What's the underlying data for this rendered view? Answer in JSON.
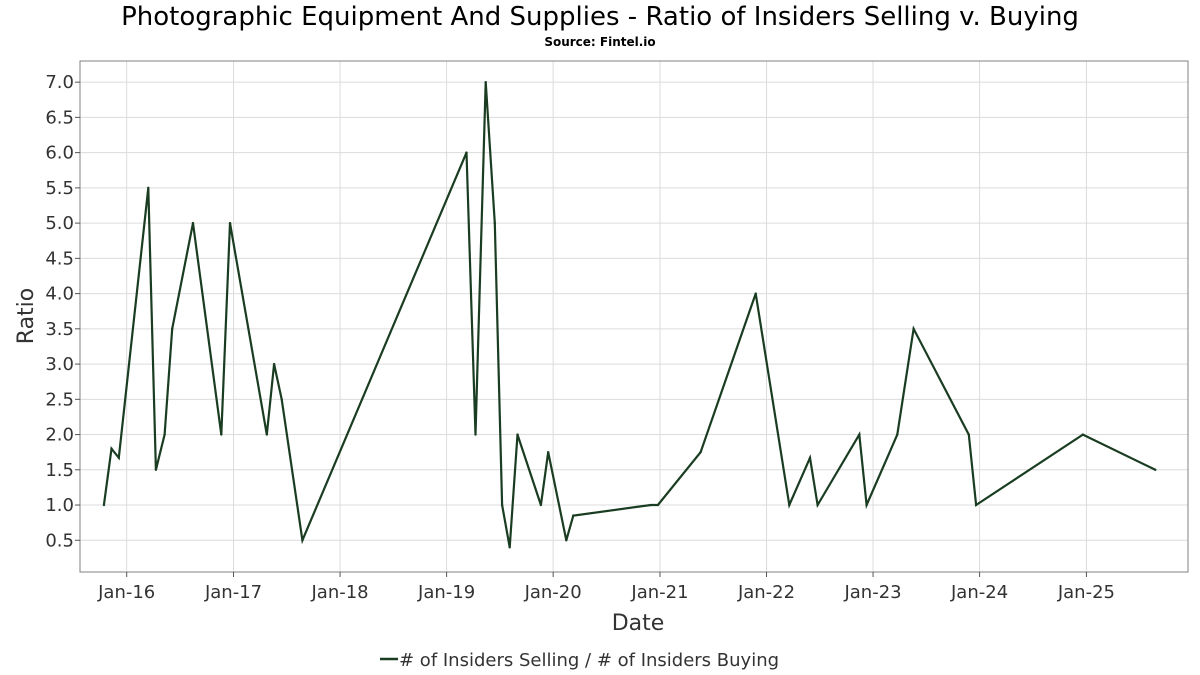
{
  "chart_data": {
    "type": "line",
    "title": "Photographic Equipment And Supplies - Ratio of Insiders Selling v. Buying",
    "subtitle": "Source: Fintel.io",
    "xlabel": "Date",
    "ylabel": "Ratio",
    "x_ticks": [
      "Jan-16",
      "Jan-17",
      "Jan-18",
      "Jan-19",
      "Jan-20",
      "Jan-21",
      "Jan-22",
      "Jan-23",
      "Jan-24",
      "Jan-25"
    ],
    "y_ticks": [
      "0.5",
      "1.0",
      "1.5",
      "2.0",
      "2.5",
      "3.0",
      "3.5",
      "4.0",
      "4.5",
      "5.0",
      "5.5",
      "6.0",
      "6.5",
      "7.0"
    ],
    "xlim": [
      "2015-07-25",
      "2025-12-15"
    ],
    "ylim": [
      0.05,
      7.3
    ],
    "grid": true,
    "legend_position": "bottom-center",
    "line_color": "#1a3d22",
    "series": [
      {
        "name": "# of Insiders Selling / # of Insiders Buying",
        "points": [
          [
            "2015-10-15",
            1.0
          ],
          [
            "2015-11-10",
            1.8
          ],
          [
            "2015-12-05",
            1.67
          ],
          [
            "2016-03-15",
            5.5
          ],
          [
            "2016-04-10",
            1.5
          ],
          [
            "2016-05-10",
            2.0
          ],
          [
            "2016-06-05",
            3.5
          ],
          [
            "2016-08-15",
            5.0
          ],
          [
            "2016-11-20",
            2.0
          ],
          [
            "2016-12-20",
            5.0
          ],
          [
            "2017-04-25",
            2.0
          ],
          [
            "2017-05-20",
            3.0
          ],
          [
            "2017-06-15",
            2.5
          ],
          [
            "2017-08-25",
            0.5
          ],
          [
            "2019-03-10",
            6.0
          ],
          [
            "2019-04-10",
            2.0
          ],
          [
            "2019-05-15",
            7.0
          ],
          [
            "2019-06-15",
            5.0
          ],
          [
            "2019-07-10",
            1.0
          ],
          [
            "2019-08-05",
            0.4
          ],
          [
            "2019-09-01",
            2.0
          ],
          [
            "2019-11-20",
            1.0
          ],
          [
            "2019-12-15",
            1.75
          ],
          [
            "2020-02-15",
            0.5
          ],
          [
            "2020-03-10",
            0.85
          ],
          [
            "2020-12-01",
            1.0
          ],
          [
            "2020-12-25",
            1.0
          ],
          [
            "2021-05-20",
            1.75
          ],
          [
            "2021-11-25",
            4.0
          ],
          [
            "2022-03-20",
            1.0
          ],
          [
            "2022-05-30",
            1.67
          ],
          [
            "2022-06-25",
            1.0
          ],
          [
            "2022-11-15",
            2.0
          ],
          [
            "2022-12-10",
            1.0
          ],
          [
            "2023-03-25",
            2.0
          ],
          [
            "2023-05-20",
            3.5
          ],
          [
            "2023-11-25",
            2.0
          ],
          [
            "2023-12-20",
            1.0
          ],
          [
            "2024-12-20",
            2.0
          ],
          [
            "2025-08-25",
            1.5
          ]
        ]
      }
    ]
  }
}
